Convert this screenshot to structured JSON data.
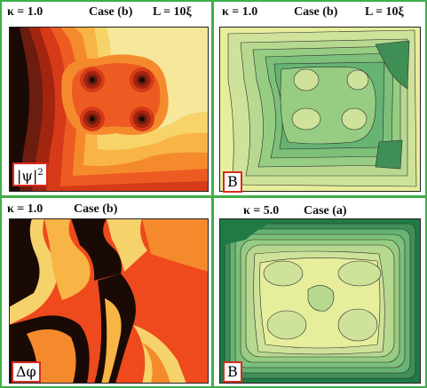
{
  "panels": {
    "top_left": {
      "kappa": "κ = 1.0",
      "case": "Case (b)",
      "length": "L = 10ξ",
      "label_main": "|ψ|",
      "label_sup": "2"
    },
    "top_right": {
      "kappa": "κ = 1.0",
      "case": "Case (b)",
      "length": "L = 10ξ",
      "label_main": "B"
    },
    "bottom_left": {
      "kappa": "κ = 1.0",
      "case": "Case (b)",
      "label_main": "Δφ"
    },
    "bottom_right": {
      "kappa": "κ = 5.0",
      "case": "Case (a)",
      "label_main": "B"
    }
  },
  "colors": {
    "frame": "#3fae49",
    "label_border": "#d92a1c",
    "heat_dark": "#1a0a06",
    "heat_mid": "#e8461f",
    "heat_light": "#f6e79a",
    "green_dark": "#1f7a45",
    "green_light": "#e6ee9c"
  }
}
